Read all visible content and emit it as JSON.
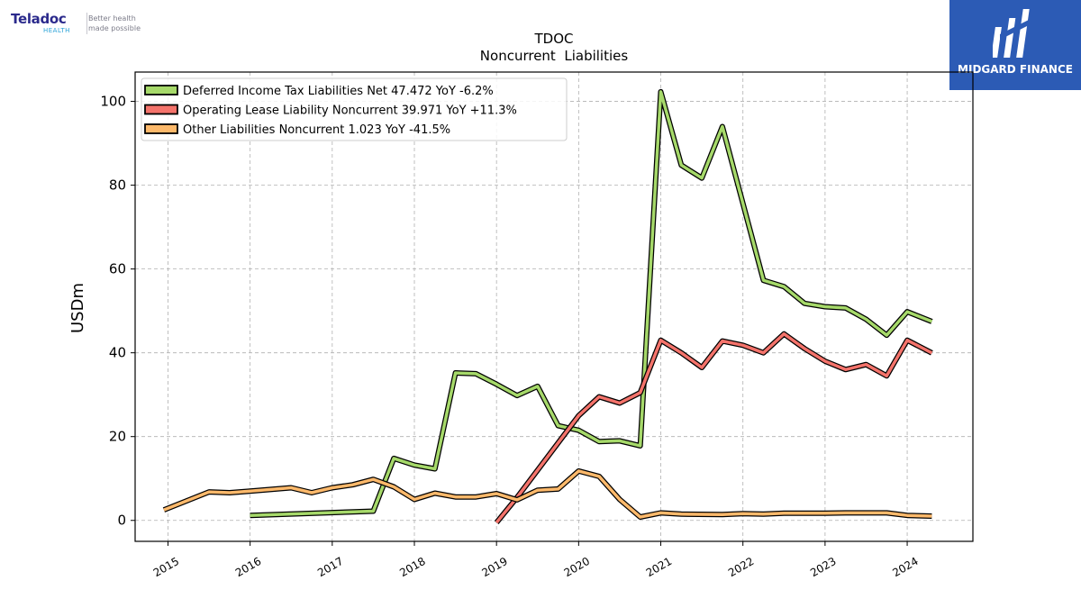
{
  "logos": {
    "left_brand": "Teladoc",
    "left_sub": "HEALTH",
    "left_tagline": "Better health\nmade possible",
    "right_name": "MIDGARD FINANCE"
  },
  "colors": {
    "deferred": "#a6d96a",
    "lease": "#f4736b",
    "other": "#fdb96b",
    "outline": "#000000",
    "grid": "#b0b0b0",
    "brand_blue": "#2c5bb5"
  },
  "chart_data": {
    "type": "line",
    "title": "TDOC",
    "subtitle": "Noncurrent  Liabilities",
    "ylabel": "USDm",
    "xlabel": "",
    "ylim": [
      -5,
      107
    ],
    "xlim": [
      2014.6,
      2024.8
    ],
    "yticks": [
      0,
      20,
      40,
      60,
      80,
      100
    ],
    "xticks": [
      "2015",
      "2016",
      "2017",
      "2018",
      "2019",
      "2020",
      "2021",
      "2022",
      "2023",
      "2024"
    ],
    "grid": true,
    "legend_position": "top-left",
    "series": [
      {
        "name": "Deferred Income Tax Liabilities Net  47.472 YoY -6.2%",
        "color_key": "deferred",
        "points": [
          [
            2016.0,
            1.2
          ],
          [
            2017.5,
            2.2
          ],
          [
            2017.75,
            14.8
          ],
          [
            2018.0,
            13.2
          ],
          [
            2018.25,
            12.3
          ],
          [
            2018.5,
            35.2
          ],
          [
            2018.75,
            35.0
          ],
          [
            2019.0,
            32.5
          ],
          [
            2019.25,
            29.8
          ],
          [
            2019.5,
            32.0
          ],
          [
            2019.75,
            22.6
          ],
          [
            2020.0,
            21.5
          ],
          [
            2020.25,
            18.8
          ],
          [
            2020.5,
            19.0
          ],
          [
            2020.75,
            17.8
          ],
          [
            2021.0,
            102.3
          ],
          [
            2021.25,
            84.8
          ],
          [
            2021.5,
            81.7
          ],
          [
            2021.75,
            94.0
          ],
          [
            2022.25,
            57.3
          ],
          [
            2022.5,
            55.8
          ],
          [
            2022.75,
            51.8
          ],
          [
            2023.0,
            51.0
          ],
          [
            2023.25,
            50.7
          ],
          [
            2023.5,
            48.0
          ],
          [
            2023.75,
            44.2
          ],
          [
            2024.0,
            49.8
          ],
          [
            2024.3,
            47.472
          ]
        ]
      },
      {
        "name": "Operating Lease Liability Noncurrent  39.971 YoY +11.3%",
        "color_key": "lease",
        "points": [
          [
            2019.0,
            -0.5
          ],
          [
            2019.25,
            5.5
          ],
          [
            2020.0,
            25.0
          ],
          [
            2020.25,
            29.5
          ],
          [
            2020.5,
            28.0
          ],
          [
            2020.75,
            30.5
          ],
          [
            2021.0,
            43.0
          ],
          [
            2021.25,
            40.0
          ],
          [
            2021.5,
            36.5
          ],
          [
            2021.75,
            42.8
          ],
          [
            2022.0,
            41.8
          ],
          [
            2022.25,
            40.0
          ],
          [
            2022.5,
            44.5
          ],
          [
            2022.75,
            41.0
          ],
          [
            2023.0,
            38.0
          ],
          [
            2023.25,
            36.0
          ],
          [
            2023.5,
            37.2
          ],
          [
            2023.75,
            34.5
          ],
          [
            2024.0,
            43.0
          ],
          [
            2024.3,
            39.971
          ]
        ]
      },
      {
        "name": "Other Liabilities Noncurrent  1.023 YoY -41.5%",
        "color_key": "other",
        "points": [
          [
            2014.95,
            2.5
          ],
          [
            2015.5,
            6.8
          ],
          [
            2015.75,
            6.6
          ],
          [
            2016.0,
            7.0
          ],
          [
            2016.5,
            7.8
          ],
          [
            2016.75,
            6.6
          ],
          [
            2017.0,
            7.8
          ],
          [
            2017.25,
            8.5
          ],
          [
            2017.5,
            9.8
          ],
          [
            2017.75,
            8.0
          ],
          [
            2018.0,
            5.0
          ],
          [
            2018.25,
            6.5
          ],
          [
            2018.5,
            5.6
          ],
          [
            2018.75,
            5.6
          ],
          [
            2019.0,
            6.4
          ],
          [
            2019.25,
            4.9
          ],
          [
            2019.5,
            7.2
          ],
          [
            2019.75,
            7.5
          ],
          [
            2020.0,
            11.8
          ],
          [
            2020.25,
            10.5
          ],
          [
            2020.5,
            5.0
          ],
          [
            2020.75,
            0.8
          ],
          [
            2021.0,
            1.8
          ],
          [
            2021.25,
            1.5
          ],
          [
            2021.75,
            1.4
          ],
          [
            2022.0,
            1.6
          ],
          [
            2022.25,
            1.5
          ],
          [
            2022.5,
            1.7
          ],
          [
            2023.0,
            1.7
          ],
          [
            2023.25,
            1.8
          ],
          [
            2023.75,
            1.8
          ],
          [
            2024.0,
            1.2
          ],
          [
            2024.3,
            1.023
          ]
        ]
      }
    ]
  }
}
